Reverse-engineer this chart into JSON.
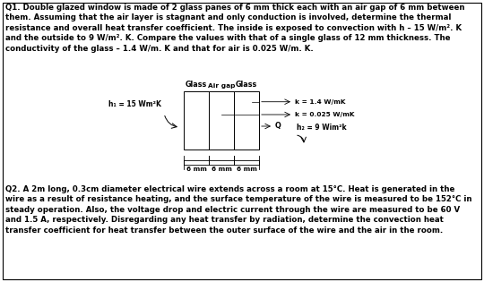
{
  "bg_color": "#ffffff",
  "border_color": "#000000",
  "q1_text": "Q1. Double glazed window is made of 2 glass panes of 6 mm thick each with an air gap of 6 mm between\nthem. Assuming that the air layer is stagnant and only conduction is involved, determine the thermal\nresistance and overall heat transfer coefficient. The inside is exposed to convection with h – 15 W/m². K\nand the outside to 9 W/m². K. Compare the values with that of a single glass of 12 mm thickness. The\nconductivity of the glass – 1.4 W/m. K and that for air is 0.025 W/m. K.",
  "q2_text": "Q2. A 2m long, 0.3cm diameter electrical wire extends across a room at 15°C. Heat is generated in the\nwire as a result of resistance heating, and the surface temperature of the wire is measured to be 152°C in\nsteady operation. Also, the voltage drop and electric current through the wire are measured to be 60 V\nand 1.5 A, respectively. Disregarding any heat transfer by radiation, determine the convection heat\ntransfer coefficient for heat transfer between the outer surface of the wire and the air in the room.",
  "h1_label": "h₁ = 15 Wm²K",
  "h2_label": "h₂ = 9 Wim²k",
  "k_glass_label": "k = 1.4 W/mK",
  "k_air_label": "k = 0.025 W/mK",
  "q_label": "Q",
  "glass_label": "Glass",
  "air_gap_label": "Air gap",
  "dim_labels": [
    "6 mm",
    "6 mm",
    "6 mm"
  ],
  "font_size_body": 6.2,
  "font_size_diag": 5.8,
  "font_size_dim": 5.2
}
